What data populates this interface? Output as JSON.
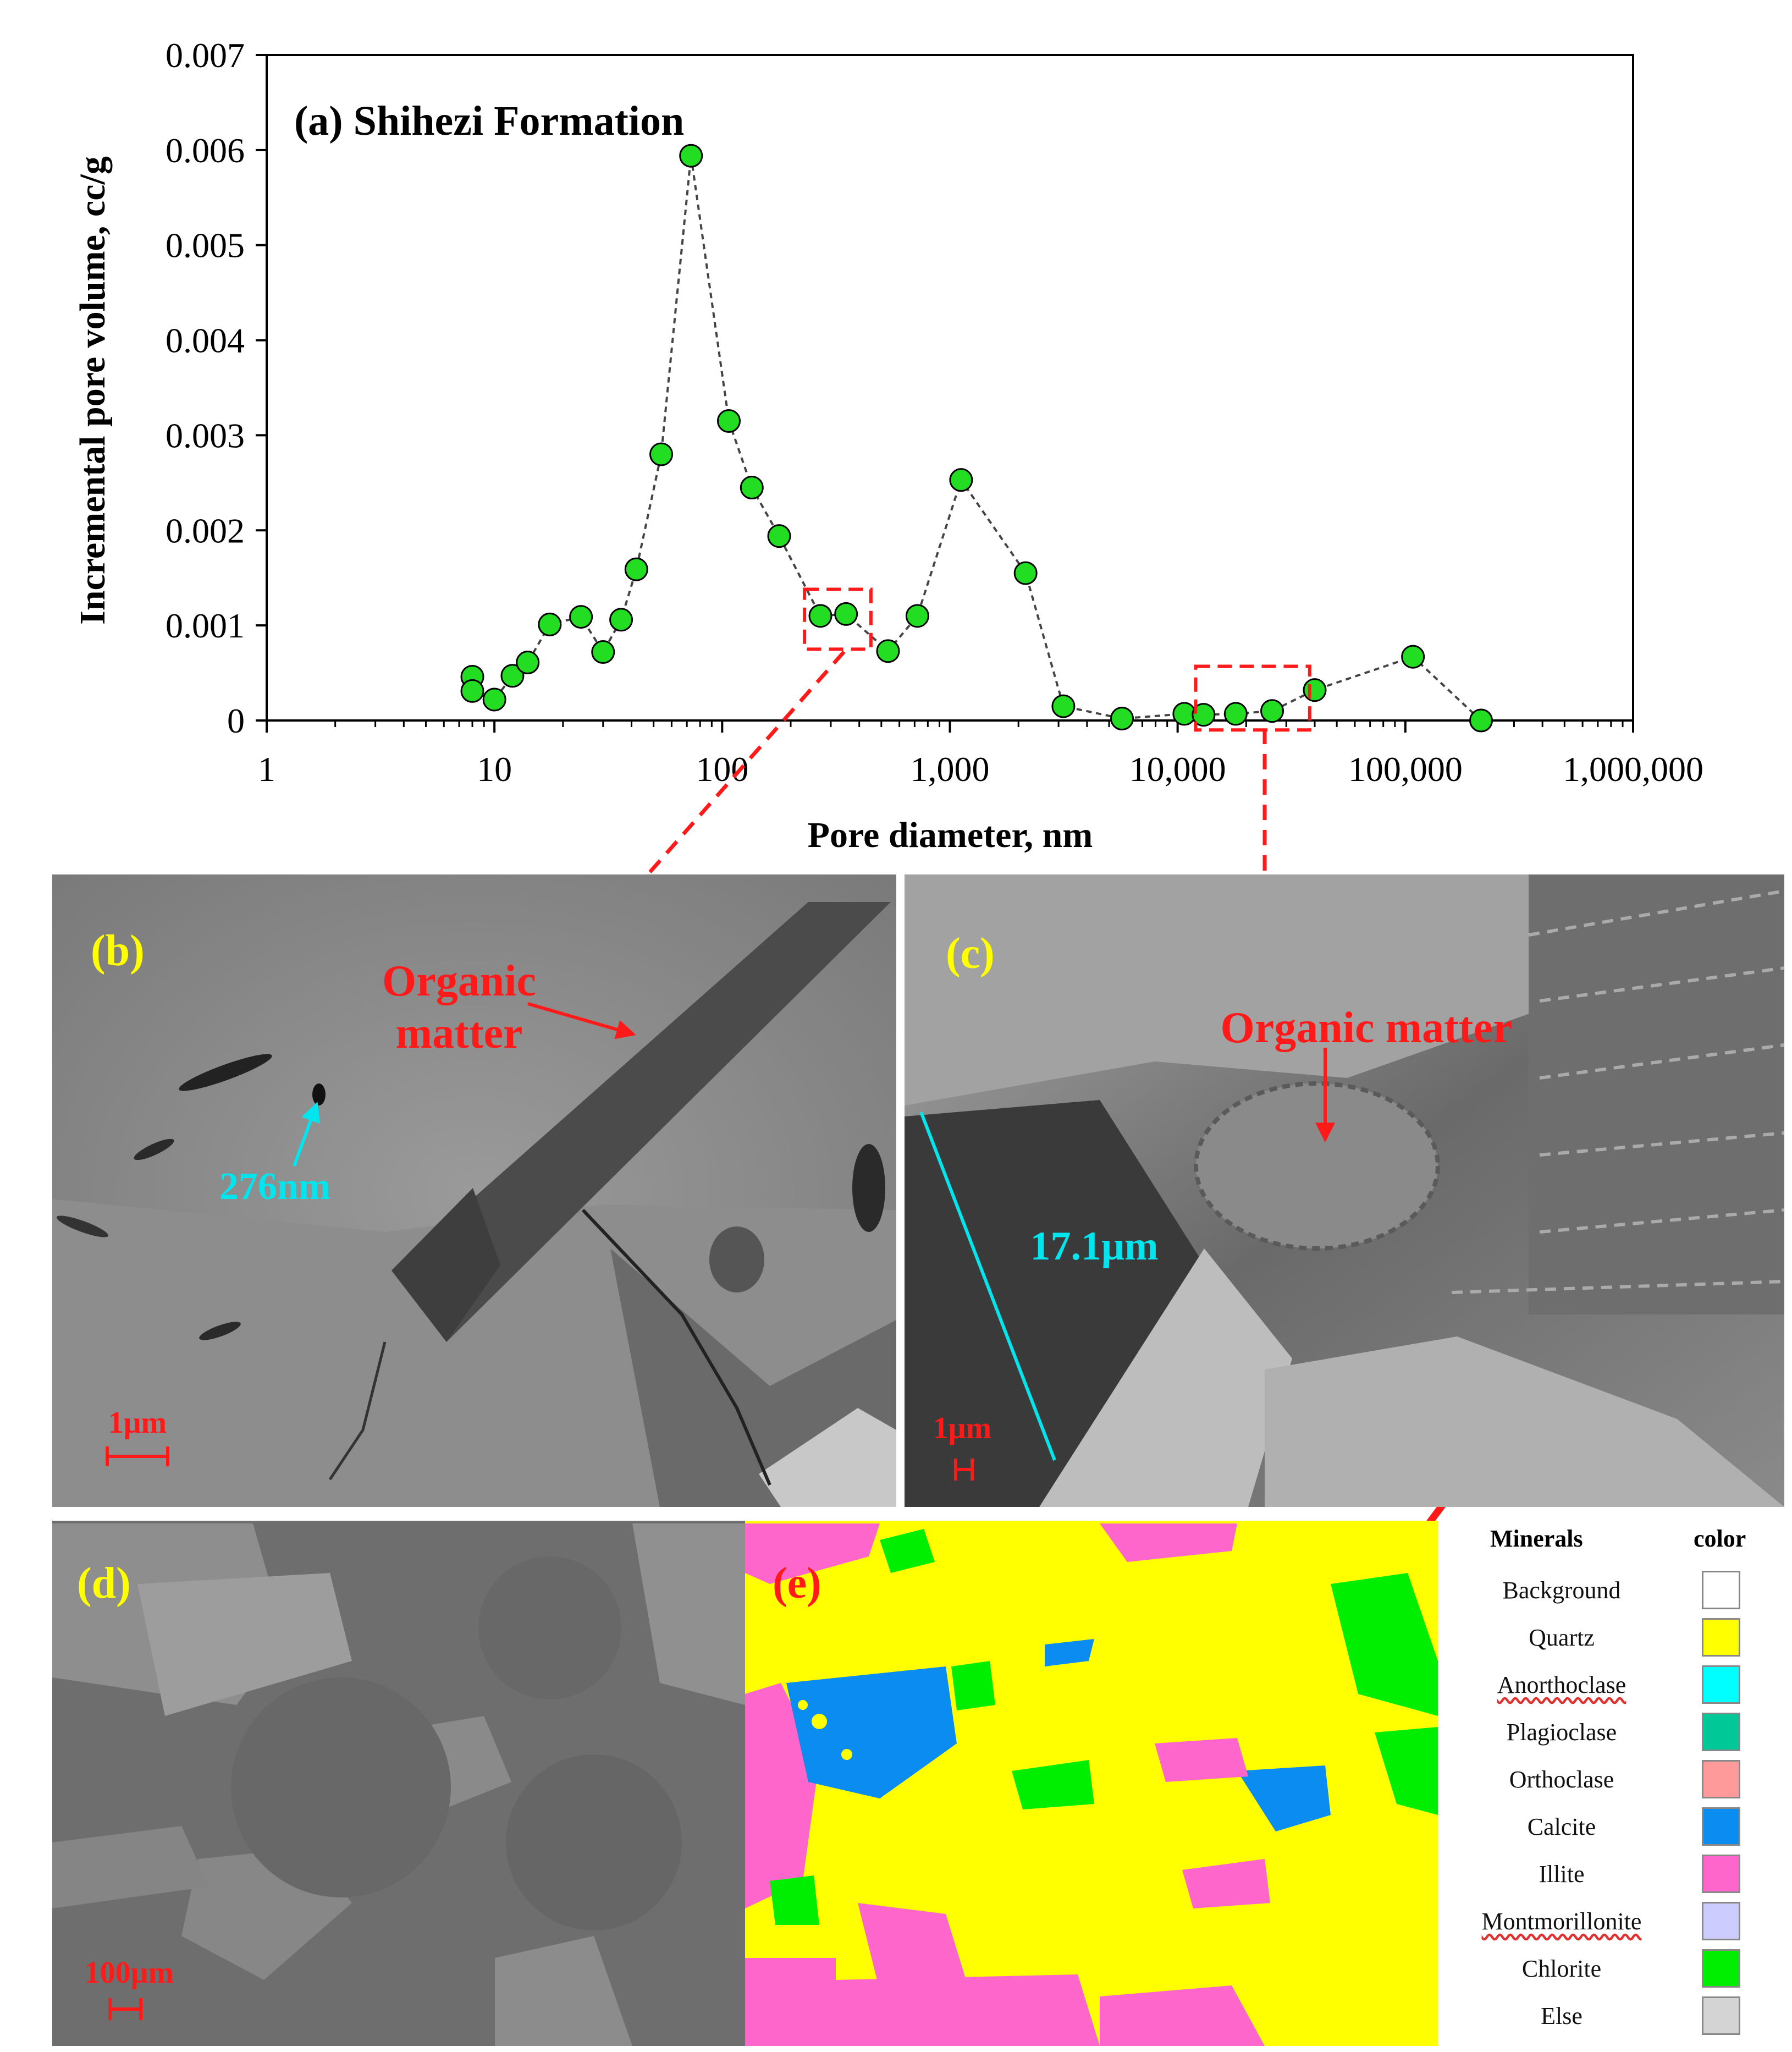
{
  "chart_data": {
    "type": "scatter",
    "title": "(a) Shihezi Formation",
    "xlabel": "Pore diameter, nm",
    "ylabel": "Incremental pore volume, cc/g",
    "xscale": "log",
    "xlim": [
      1,
      1000000
    ],
    "ylim": [
      0,
      0.007
    ],
    "x_ticks": [
      "1",
      "10",
      "100",
      "1,000",
      "10,000",
      "100,000",
      "1,000,000"
    ],
    "y_ticks": [
      "0",
      "0.001",
      "0.002",
      "0.003",
      "0.004",
      "0.005",
      "0.006",
      "0.007"
    ],
    "grid": false,
    "marker_color": "#22dd22",
    "line_style": "dashed",
    "series": [
      {
        "x": [
          8,
          8,
          10,
          12,
          14,
          17.5,
          24,
          30,
          36,
          42,
          54,
          73,
          107,
          135,
          178,
          270,
          350,
          535,
          720,
          1120,
          2150,
          3150,
          5700,
          10700,
          13000,
          18000,
          26000,
          40000,
          108000,
          215000
        ],
        "y": [
          0.00046,
          0.00031,
          0.00022,
          0.00047,
          0.00061,
          0.00101,
          0.00109,
          0.00072,
          0.00106,
          0.00159,
          0.0028,
          0.00594,
          0.00315,
          0.00245,
          0.00194,
          0.0011,
          0.00112,
          0.00073,
          0.0011,
          0.00253,
          0.00155,
          0.00015,
          2e-05,
          7e-05,
          6e-05,
          7e-05,
          0.0001,
          0.00032,
          0.00067,
          0.0
        ]
      }
    ],
    "highlight_boxes": [
      {
        "x_range": [
          230,
          450
        ],
        "y_range": [
          0.00075,
          0.00138
        ]
      },
      {
        "x_range": [
          12000,
          38000
        ],
        "y_range": [
          -0.0001,
          0.00057
        ]
      }
    ]
  },
  "panels": {
    "b": {
      "label": "(b)",
      "organic": [
        "Organic",
        "matter"
      ],
      "pore": "276nm",
      "scale": "1μm"
    },
    "c": {
      "label": "(c)",
      "organic": "Organic matter",
      "length": "17.1μm",
      "scale": "1μm"
    },
    "d": {
      "label": "(d)",
      "scale": "100μm"
    },
    "e": {
      "label": "(e)"
    }
  },
  "legend": {
    "header_minerals": "Minerals",
    "header_color": "color",
    "items": [
      {
        "name": "Background",
        "color": "#ffffff"
      },
      {
        "name": "Quartz",
        "color": "#ffff00"
      },
      {
        "name": "Anorthoclase",
        "color": "#00ffff"
      },
      {
        "name": "Plagioclase",
        "color": "#00c896"
      },
      {
        "name": "Orthoclase",
        "color": "#ff9a9a"
      },
      {
        "name": "Calcite",
        "color": "#0a8cf0"
      },
      {
        "name": "Illite",
        "color": "#ff66cc"
      },
      {
        "name": "Montmorillonite",
        "color": "#ccccff"
      },
      {
        "name": "Chlorite",
        "color": "#00ee00"
      },
      {
        "name": "Else",
        "color": "#d4d4d4"
      }
    ]
  }
}
